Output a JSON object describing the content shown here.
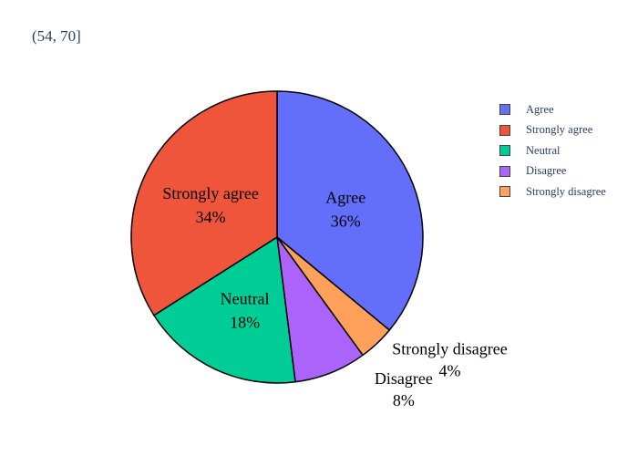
{
  "chart_data": {
    "type": "pie",
    "title": "(54, 70]",
    "slices": [
      {
        "label": "Agree",
        "percent": 36,
        "percent_label": "36%",
        "color": "#636efa"
      },
      {
        "label": "Strongly disagree",
        "percent": 4,
        "percent_label": "4%",
        "color": "#ffa15a"
      },
      {
        "label": "Disagree",
        "percent": 8,
        "percent_label": "8%",
        "color": "#ab63fa"
      },
      {
        "label": "Neutral",
        "percent": 18,
        "percent_label": "18%",
        "color": "#00cc96"
      },
      {
        "label": "Strongly agree",
        "percent": 34,
        "percent_label": "34%",
        "color": "#ef553b"
      }
    ],
    "legend": {
      "placement": "right",
      "items": [
        {
          "label": "Agree",
          "color": "#636efa"
        },
        {
          "label": "Strongly agree",
          "color": "#ef553b"
        },
        {
          "label": "Neutral",
          "color": "#00cc96"
        },
        {
          "label": "Disagree",
          "color": "#ab63fa"
        },
        {
          "label": "Strongly disagree",
          "color": "#ffa15a"
        }
      ]
    }
  }
}
